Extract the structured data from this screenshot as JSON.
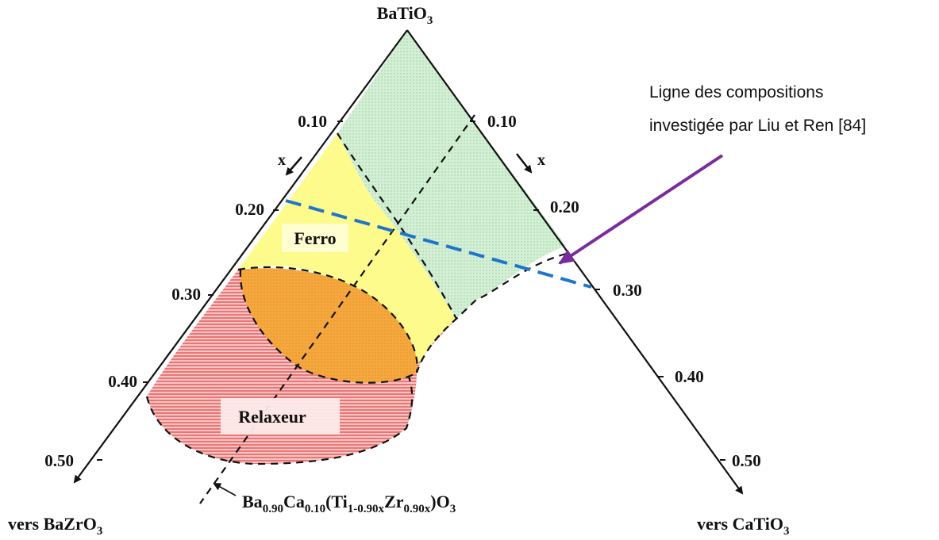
{
  "apex_top": {
    "base": "BaTiO",
    "sub": "3"
  },
  "corner_left": {
    "base": "vers BaZrO",
    "sub": "3"
  },
  "corner_right": {
    "base": "vers CaTiO",
    "sub": "3"
  },
  "left_ticks": [
    "0.10",
    "0.20",
    "0.30",
    "0.40",
    "0.50"
  ],
  "right_ticks": [
    "0.10",
    "0.20",
    "0.30",
    "0.40",
    "0.50"
  ],
  "axis_var_left": "x",
  "axis_var_right": "x",
  "regions": {
    "ferro": "Ferro",
    "relaxeur": "Relaxeur"
  },
  "formula_line": [
    {
      "t": "Ba"
    },
    {
      "s": "0.90"
    },
    {
      "t": "Ca"
    },
    {
      "s": "0.10"
    },
    {
      "t": "(Ti"
    },
    {
      "s": "1-0.90x"
    },
    {
      "t": "Zr"
    },
    {
      "s": "0.90x"
    },
    {
      "t": ")O"
    },
    {
      "s": "3"
    }
  ],
  "annotation": [
    "Ligne des compositions",
    "investigée par Liu et Ren [84]"
  ],
  "colors": {
    "green_zone": "#cdeccf",
    "yellow_zone": "#fdfb8c",
    "red_zone": "#f3a7a7",
    "orange_zone": "#f5a43a",
    "blue_line": "#1f75c9",
    "purple_arrow": "#7a2d9a",
    "axis": "#111111"
  }
}
